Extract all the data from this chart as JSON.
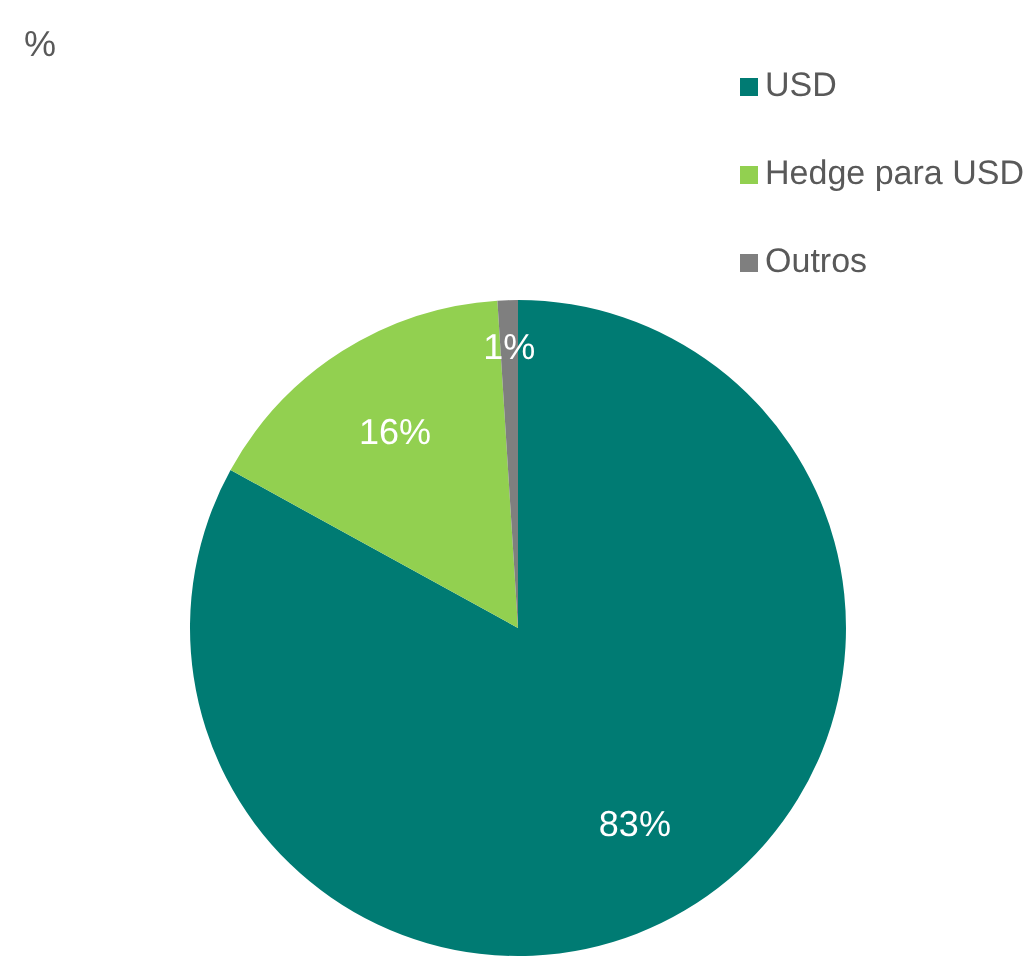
{
  "chart_data": {
    "type": "pie",
    "title": "%",
    "categories": [
      "USD",
      "Hedge para USD",
      "Outros"
    ],
    "values": [
      83,
      16,
      1
    ],
    "colors": [
      "#007b73",
      "#92d050",
      "#7f7f7f"
    ],
    "value_labels": [
      "83%",
      "16%",
      "1%"
    ],
    "legend": "top right"
  }
}
